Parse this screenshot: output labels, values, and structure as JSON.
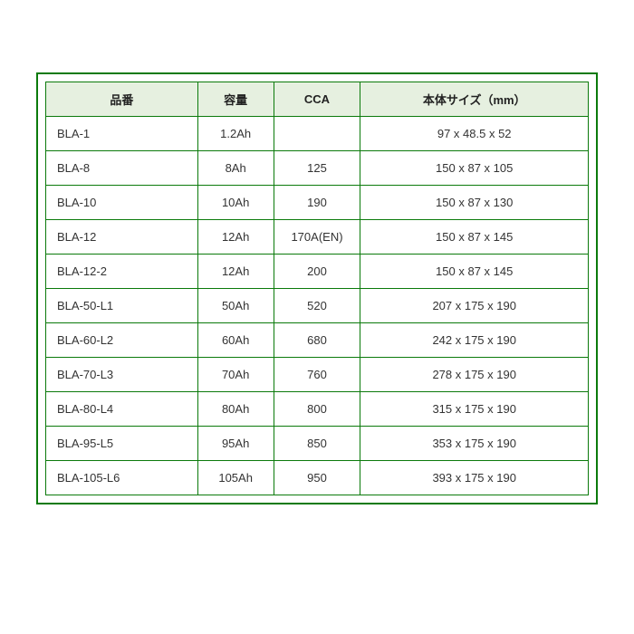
{
  "table": {
    "columns": [
      "品番",
      "容量",
      "CCA",
      "本体サイズ（mm）"
    ],
    "column_widths_pct": [
      28,
      14,
      16,
      42
    ],
    "header_bg": "#e6f0e0",
    "border_color": "#0b7a0b",
    "cell_bg": "#ffffff",
    "header_text_color": "#222222",
    "cell_text_color": "#333333",
    "font_size_pt": 10,
    "rows": [
      {
        "model": "BLA-1",
        "capacity": "1.2Ah",
        "cca": "",
        "size": "97 x 48.5 x 52"
      },
      {
        "model": "BLA-8",
        "capacity": "8Ah",
        "cca": "125",
        "size": "150 x 87 x 105"
      },
      {
        "model": "BLA-10",
        "capacity": "10Ah",
        "cca": "190",
        "size": "150 x 87 x 130"
      },
      {
        "model": "BLA-12",
        "capacity": "12Ah",
        "cca": "170A(EN)",
        "size": "150 x 87 x 145"
      },
      {
        "model": "BLA-12-2",
        "capacity": "12Ah",
        "cca": "200",
        "size": "150 x 87 x 145"
      },
      {
        "model": "BLA-50-L1",
        "capacity": "50Ah",
        "cca": "520",
        "size": "207 x 175 x 190"
      },
      {
        "model": "BLA-60-L2",
        "capacity": "60Ah",
        "cca": "680",
        "size": "242 x 175 x 190"
      },
      {
        "model": "BLA-70-L3",
        "capacity": "70Ah",
        "cca": "760",
        "size": "278 x 175 x 190"
      },
      {
        "model": "BLA-80-L4",
        "capacity": "80Ah",
        "cca": "800",
        "size": "315 x 175 x 190"
      },
      {
        "model": "BLA-95-L5",
        "capacity": "95Ah",
        "cca": "850",
        "size": "353 x 175 x 190"
      },
      {
        "model": "BLA-105-L6",
        "capacity": "105Ah",
        "cca": "950",
        "size": "393 x 175 x 190"
      }
    ]
  }
}
